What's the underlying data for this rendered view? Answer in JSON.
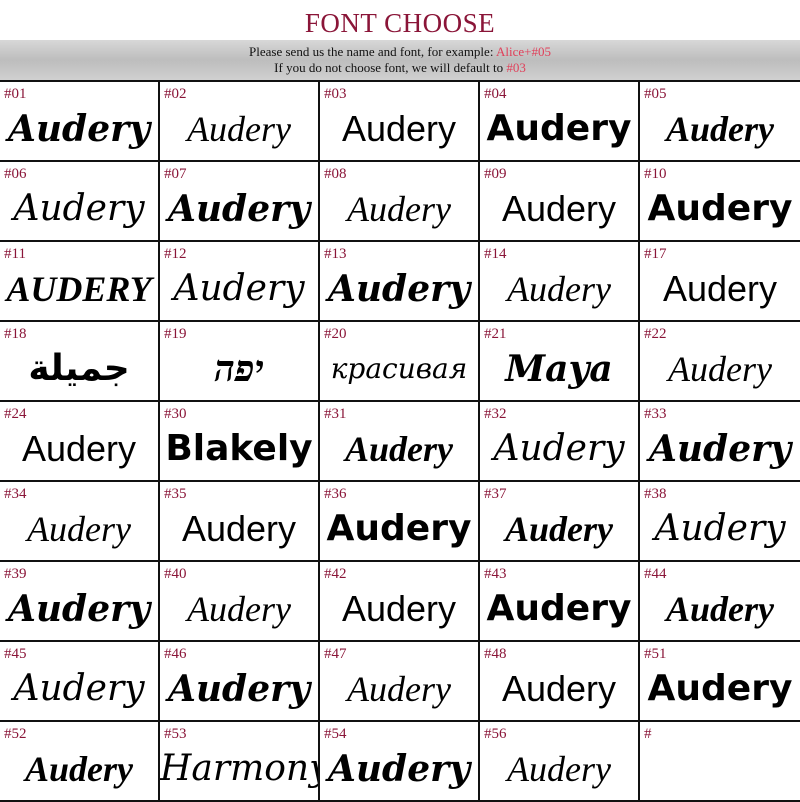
{
  "header": {
    "title": "FONT CHOOSE",
    "line1": "Please send us the name and font, for example: ",
    "example": "Alice+#05",
    "line2": "If you do not choose  font, we will default to ",
    "default": "#03"
  },
  "accent": "#8a1538",
  "cells": [
    {
      "code": "#01",
      "text": "Audery"
    },
    {
      "code": "#02",
      "text": "Audery"
    },
    {
      "code": "#03",
      "text": "Audery"
    },
    {
      "code": "#04",
      "text": "Audery"
    },
    {
      "code": "#05",
      "text": "Audery"
    },
    {
      "code": "#06",
      "text": "Audery"
    },
    {
      "code": "#07",
      "text": "Audery"
    },
    {
      "code": "#08",
      "text": "Audery"
    },
    {
      "code": "#09",
      "text": "Audery"
    },
    {
      "code": "#10",
      "text": "Audery"
    },
    {
      "code": "#11",
      "text": "AUDERY"
    },
    {
      "code": "#12",
      "text": "Audery"
    },
    {
      "code": "#13",
      "text": "Audery"
    },
    {
      "code": "#14",
      "text": "Audery"
    },
    {
      "code": "#17",
      "text": "Audery"
    },
    {
      "code": "#18",
      "text": "جميلة"
    },
    {
      "code": "#19",
      "text": "יפה"
    },
    {
      "code": "#20",
      "text": "красивая"
    },
    {
      "code": "#21",
      "text": "Maya"
    },
    {
      "code": "#22",
      "text": "Audery"
    },
    {
      "code": "#24",
      "text": "Audery"
    },
    {
      "code": "#30",
      "text": "Blakely"
    },
    {
      "code": "#31",
      "text": "Audery"
    },
    {
      "code": "#32",
      "text": "Audery"
    },
    {
      "code": "#33",
      "text": "Audery"
    },
    {
      "code": "#34",
      "text": "Audery"
    },
    {
      "code": "#35",
      "text": "Audery"
    },
    {
      "code": "#36",
      "text": "Audery"
    },
    {
      "code": "#37",
      "text": "Audery"
    },
    {
      "code": "#38",
      "text": "Audery"
    },
    {
      "code": "#39",
      "text": "Audery"
    },
    {
      "code": "#40",
      "text": "Audery"
    },
    {
      "code": "#42",
      "text": "Audery"
    },
    {
      "code": "#43",
      "text": "Audery"
    },
    {
      "code": "#44",
      "text": "Audery"
    },
    {
      "code": "#45",
      "text": "Audery"
    },
    {
      "code": "#46",
      "text": "Audery"
    },
    {
      "code": "#47",
      "text": "Audery"
    },
    {
      "code": "#48",
      "text": "Audery"
    },
    {
      "code": "#51",
      "text": "Audery"
    },
    {
      "code": "#52",
      "text": "Audery"
    },
    {
      "code": "#53",
      "text": "Harmony"
    },
    {
      "code": "#54",
      "text": "Audery"
    },
    {
      "code": "#56",
      "text": "Audery"
    },
    {
      "code": "#",
      "text": ""
    }
  ]
}
